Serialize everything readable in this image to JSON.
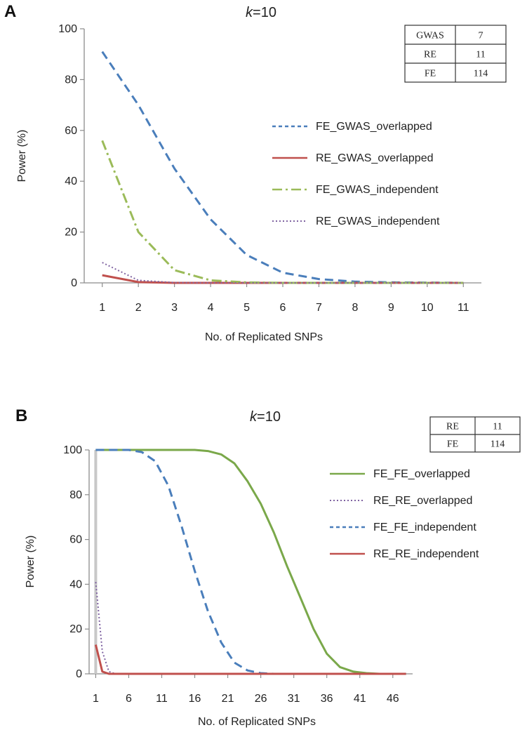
{
  "chart_data": [
    {
      "panel": "A",
      "type": "line",
      "title_prefix": "k",
      "title_suffix": "=10",
      "xlabel": "No. of Replicated SNPs",
      "ylabel": "Power (%)",
      "ylim": [
        0,
        100
      ],
      "yticks": [
        0,
        20,
        40,
        60,
        80,
        100
      ],
      "xlim": [
        0.5,
        11.5
      ],
      "xticks": [
        1,
        2,
        3,
        4,
        5,
        6,
        7,
        8,
        9,
        10,
        11
      ],
      "table": [
        [
          "GWAS",
          "7"
        ],
        [
          "RE",
          "11"
        ],
        [
          "FE",
          "114"
        ]
      ],
      "series": [
        {
          "name": "FE_GWAS_overlapped",
          "color": "#4a7ebb",
          "style": "dash",
          "x": [
            1,
            2,
            3,
            4,
            5,
            6,
            7,
            8,
            9,
            10,
            11
          ],
          "y": [
            91,
            70,
            45,
            25,
            11,
            4,
            1.5,
            0.5,
            0.2,
            0.1,
            0
          ]
        },
        {
          "name": "RE_GWAS_overlapped",
          "color": "#c0504d",
          "style": "solid",
          "x": [
            1,
            2,
            3,
            4,
            5,
            6,
            7,
            8,
            9,
            10,
            11
          ],
          "y": [
            3,
            0.3,
            0,
            0,
            0,
            0,
            0,
            0,
            0,
            0,
            0
          ]
        },
        {
          "name": "FE_GWAS_independent",
          "color": "#9bbb59",
          "style": "dashdot",
          "x": [
            1,
            2,
            3,
            4,
            5,
            6,
            7,
            8,
            9,
            10,
            11
          ],
          "y": [
            56,
            20,
            5,
            1,
            0.2,
            0,
            0,
            0,
            0,
            0,
            0
          ]
        },
        {
          "name": "RE_GWAS_independent",
          "color": "#8064a2",
          "style": "dot",
          "x": [
            1,
            2,
            3,
            4,
            5,
            6,
            7,
            8,
            9,
            10,
            11
          ],
          "y": [
            8,
            1,
            0.1,
            0,
            0,
            0,
            0,
            0,
            0,
            0,
            0
          ]
        }
      ]
    },
    {
      "panel": "B",
      "type": "line",
      "title_prefix": "k",
      "title_suffix": "=10",
      "xlabel": "No. of Replicated SNPs",
      "ylabel": "Power (%)",
      "ylim": [
        0,
        100
      ],
      "yticks": [
        0,
        20,
        40,
        60,
        80,
        100
      ],
      "xlim": [
        0,
        49
      ],
      "xticks": [
        1,
        6,
        11,
        16,
        21,
        26,
        31,
        36,
        41,
        46
      ],
      "table": [
        [
          "RE",
          "11"
        ],
        [
          "FE",
          "114"
        ]
      ],
      "series": [
        {
          "name": "FE_FE_overlapped",
          "color": "#7aa84a",
          "style": "solid",
          "x": [
            1,
            6,
            11,
            14,
            16,
            18,
            20,
            22,
            24,
            26,
            28,
            30,
            32,
            34,
            36,
            38,
            40,
            42,
            44,
            48
          ],
          "y": [
            100,
            100,
            100,
            100,
            100,
            99.5,
            98,
            94,
            86,
            76,
            63,
            48,
            34,
            20,
            9,
            3,
            1,
            0.3,
            0,
            0
          ]
        },
        {
          "name": "RE_RE_overlapped",
          "color": "#8064a2",
          "style": "dot",
          "x": [
            1,
            2,
            3,
            4,
            48
          ],
          "y": [
            41,
            10,
            1,
            0,
            0
          ]
        },
        {
          "name": "FE_FE_independent",
          "color": "#4a7ebb",
          "style": "dash",
          "x": [
            1,
            6,
            8,
            10,
            12,
            14,
            16,
            18,
            20,
            22,
            24,
            26,
            28,
            48
          ],
          "y": [
            100,
            100,
            99,
            95,
            84,
            66,
            46,
            28,
            14,
            5,
            1.5,
            0.3,
            0,
            0
          ]
        },
        {
          "name": "RE_RE_independent",
          "color": "#c0504d",
          "style": "solid",
          "x": [
            1,
            2,
            3,
            48
          ],
          "y": [
            13,
            1,
            0,
            0
          ]
        }
      ]
    }
  ]
}
